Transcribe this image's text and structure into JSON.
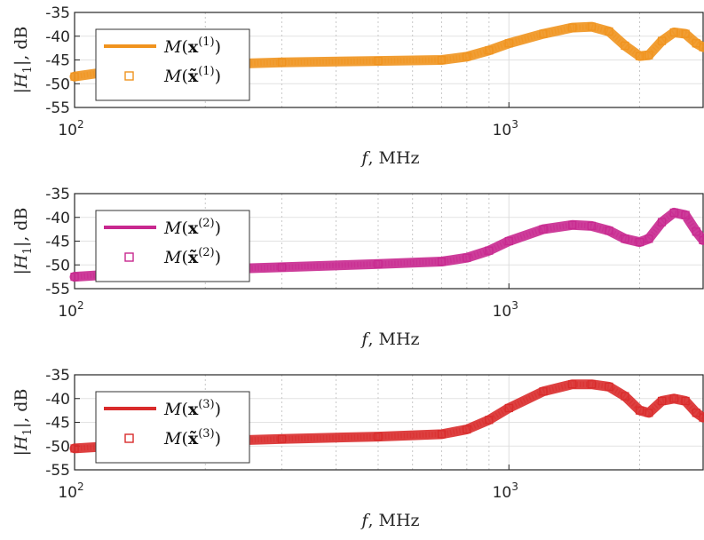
{
  "chart_data": [
    {
      "type": "line",
      "xlabel": "f, MHz",
      "ylabel": "|H_1|, dB",
      "xscale": "log",
      "xlim": [
        100,
        2800
      ],
      "ylim": [
        -55,
        -35
      ],
      "x_ticks": [
        "10^2",
        "10^3"
      ],
      "y_ticks": [
        "-35",
        "-40",
        "-45",
        "-50",
        "-55"
      ],
      "grid": true,
      "legend_position": "top-left",
      "series": [
        {
          "name": "M(x^(1))",
          "style": "line",
          "color": "#f0931e",
          "x": [
            100,
            130,
            200,
            300,
            500,
            700,
            800,
            900,
            1000,
            1200,
            1400,
            1550,
            1700,
            1850,
            2000,
            2100,
            2250,
            2400,
            2550,
            2700,
            2800
          ],
          "y": [
            -48.5,
            -47.0,
            -46.0,
            -45.5,
            -45.2,
            -45.0,
            -44.3,
            -43.0,
            -41.5,
            -39.5,
            -38.2,
            -38.0,
            -39.0,
            -42.0,
            -44.2,
            -44.0,
            -41.0,
            -39.2,
            -39.5,
            -41.5,
            -42.3
          ]
        },
        {
          "name": "M(x~^(1))",
          "style": "markers",
          "color": "#f0931e"
        }
      ]
    },
    {
      "type": "line",
      "xlabel": "f, MHz",
      "ylabel": "|H_1|, dB",
      "xscale": "log",
      "xlim": [
        100,
        2800
      ],
      "ylim": [
        -55,
        -35
      ],
      "x_ticks": [
        "10^2",
        "10^3"
      ],
      "y_ticks": [
        "-35",
        "-40",
        "-45",
        "-50",
        "-55"
      ],
      "grid": true,
      "legend_position": "top-left",
      "series": [
        {
          "name": "M(x^(2))",
          "style": "line",
          "color": "#c8288f",
          "x": [
            100,
            150,
            200,
            300,
            500,
            700,
            800,
            900,
            1000,
            1200,
            1400,
            1550,
            1700,
            1850,
            2000,
            2100,
            2250,
            2400,
            2550,
            2700,
            2800
          ],
          "y": [
            -52.5,
            -51.5,
            -51.0,
            -50.5,
            -49.8,
            -49.3,
            -48.5,
            -47.0,
            -45.0,
            -42.5,
            -41.6,
            -41.8,
            -42.8,
            -44.5,
            -45.2,
            -44.5,
            -41.0,
            -39.0,
            -39.5,
            -43.0,
            -44.8
          ]
        },
        {
          "name": "M(x~^(2))",
          "style": "markers",
          "color": "#c8288f"
        }
      ]
    },
    {
      "type": "line",
      "xlabel": "f, MHz",
      "ylabel": "|H_1|, dB",
      "xscale": "log",
      "xlim": [
        100,
        2800
      ],
      "ylim": [
        -55,
        -35
      ],
      "x_ticks": [
        "10^2",
        "10^3"
      ],
      "y_ticks": [
        "-35",
        "-40",
        "-45",
        "-50",
        "-55"
      ],
      "grid": true,
      "legend_position": "top-left",
      "series": [
        {
          "name": "M(x^(3))",
          "style": "line",
          "color": "#d92b2b",
          "x": [
            100,
            150,
            200,
            300,
            500,
            700,
            800,
            900,
            1000,
            1200,
            1400,
            1550,
            1700,
            1850,
            2000,
            2100,
            2250,
            2400,
            2550,
            2700,
            2800
          ],
          "y": [
            -50.5,
            -49.5,
            -49.0,
            -48.5,
            -48.0,
            -47.5,
            -46.5,
            -44.5,
            -42.0,
            -38.5,
            -37.0,
            -37.0,
            -37.5,
            -39.5,
            -42.5,
            -43.0,
            -40.5,
            -40.0,
            -40.5,
            -43.0,
            -44.0
          ]
        },
        {
          "name": "M(x~^(3))",
          "style": "markers",
          "color": "#d92b2b"
        }
      ]
    }
  ]
}
